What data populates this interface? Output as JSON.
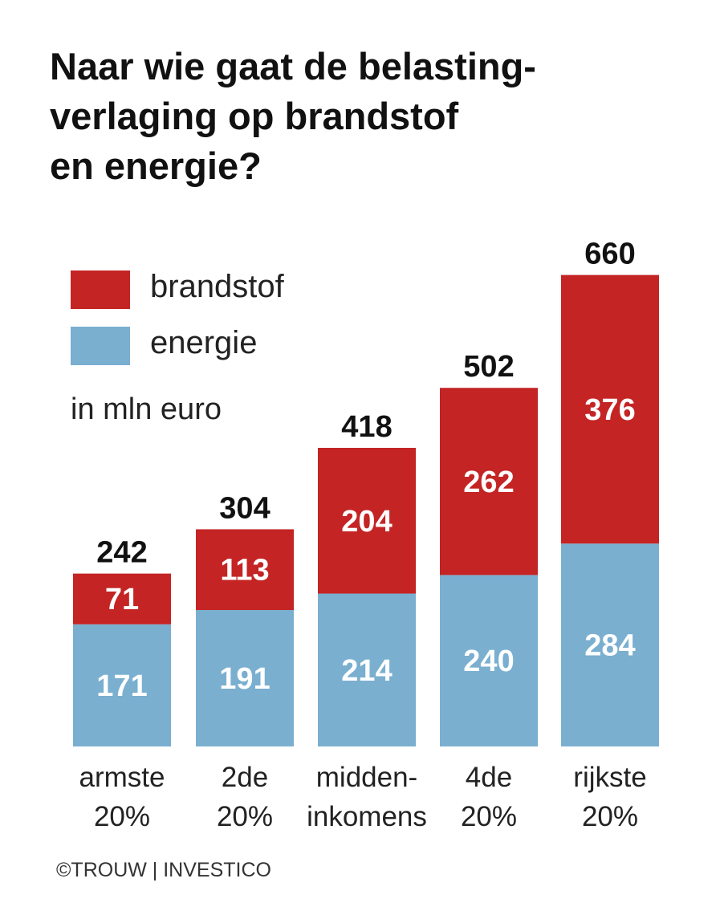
{
  "title_lines": [
    "Naar wie gaat de belasting-",
    "verlaging op brandstof",
    "en energie?"
  ],
  "unit": "in mln euro",
  "source": "©TROUW | INVESTICO",
  "colors": {
    "brandstof": "#c42424",
    "energie": "#7aafd0"
  },
  "chart_data": {
    "type": "bar",
    "stacked": true,
    "title": "Naar wie gaat de belasting-verlaging op brandstof en energie?",
    "unit": "in mln euro",
    "legend_position": "top-left",
    "categories": [
      [
        "armste",
        "20%"
      ],
      [
        "2de",
        "20%"
      ],
      [
        "midden-",
        "inkomens"
      ],
      [
        "4de",
        "20%"
      ],
      [
        "rijkste",
        "20%"
      ]
    ],
    "series": [
      {
        "name": "energie",
        "values": [
          171,
          191,
          214,
          240,
          284
        ],
        "color": "#7aafd0"
      },
      {
        "name": "brandstof",
        "values": [
          71,
          113,
          204,
          262,
          376
        ],
        "color": "#c42424"
      }
    ],
    "totals": [
      242,
      304,
      418,
      502,
      660
    ],
    "ylim": [
      0,
      660
    ],
    "grid": false
  }
}
